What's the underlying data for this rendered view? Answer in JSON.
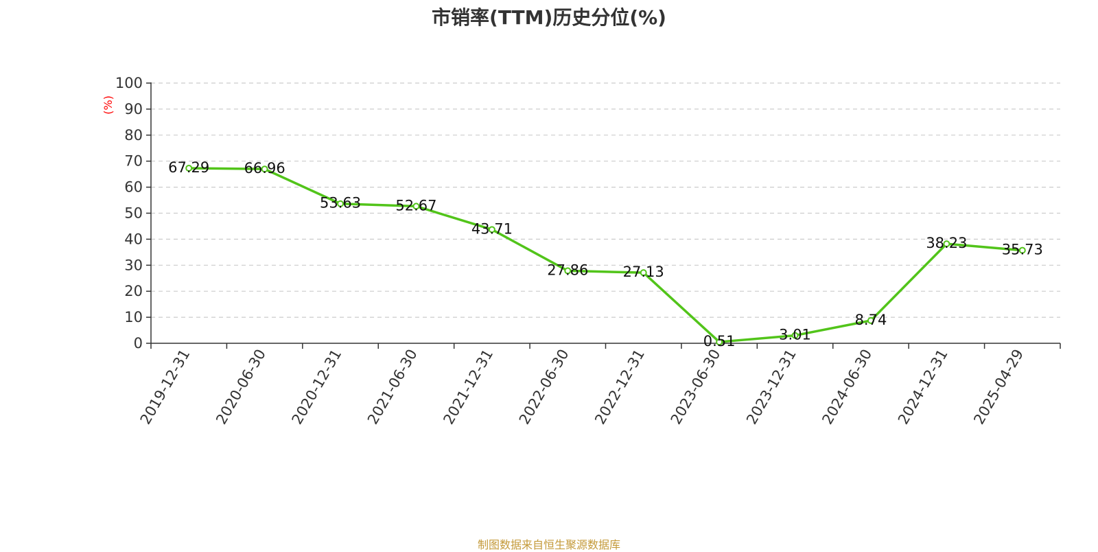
{
  "chart_data": {
    "type": "line",
    "title": "市销率(TTM)历史分位(%)",
    "ylabel": "(%)",
    "xlabel": "",
    "categories": [
      "2019-12-31",
      "2020-06-30",
      "2020-12-31",
      "2021-06-30",
      "2021-12-31",
      "2022-06-30",
      "2022-12-31",
      "2023-06-30",
      "2023-12-31",
      "2024-06-30",
      "2024-12-31",
      "2025-04-29"
    ],
    "series": [
      {
        "values": [
          67.29,
          66.96,
          53.63,
          52.67,
          43.71,
          27.86,
          27.13,
          0.51,
          3.01,
          8.74,
          38.23,
          35.73
        ]
      }
    ],
    "data_labels": [
      "67.29",
      "66.96",
      "53.63",
      "52.67",
      "43.71",
      "27.86",
      "27.13",
      "0.51",
      "3.01",
      "8.74",
      "38.23",
      "35.73"
    ],
    "ylim": [
      0,
      100
    ],
    "yticks": [
      "0",
      "10",
      "20",
      "30",
      "40",
      "50",
      "60",
      "70",
      "80",
      "90",
      "100"
    ],
    "grid": true,
    "legend": "none",
    "line_color": "#52c41a"
  },
  "footer": {
    "source": "制图数据来自恒生聚源数据库"
  }
}
